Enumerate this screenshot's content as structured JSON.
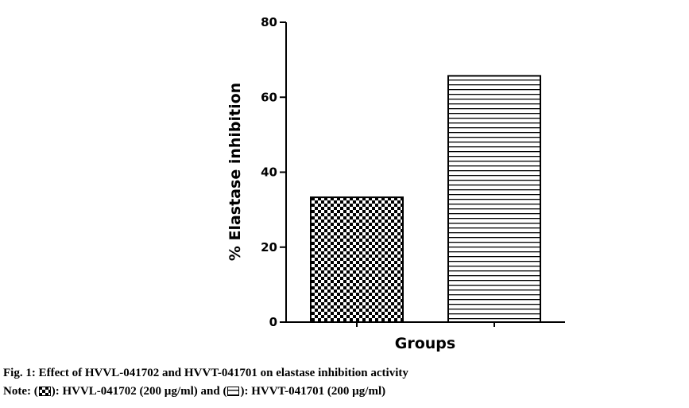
{
  "chart_data": {
    "type": "bar",
    "categories": [
      "HVVL-041702 (200 µg/ml)",
      "HVVT-041701 (200 µg/ml)"
    ],
    "values": [
      33.3,
      65.7
    ],
    "patterns": [
      "checker",
      "horizontal-lines"
    ],
    "xlabel": "Groups",
    "ylabel": "% Elastase inhibition",
    "ylim": [
      0,
      80
    ],
    "yticks": [
      "0",
      "20",
      "40",
      "60",
      "80"
    ],
    "grid": false,
    "legend": "caption-below"
  },
  "caption": {
    "line1": "Fig. 1: Effect of HVVL-041702 and HVVT-041701 on elastase inhibition activity",
    "note_prefix": "Note: (",
    "note_mid1": "): HVVL-041702 (200 µg/ml) and (",
    "note_mid2": "): HVVT-041701 (200 µg/ml)",
    "colors": {
      "ink": "#000000",
      "background": "#ffffff"
    }
  }
}
